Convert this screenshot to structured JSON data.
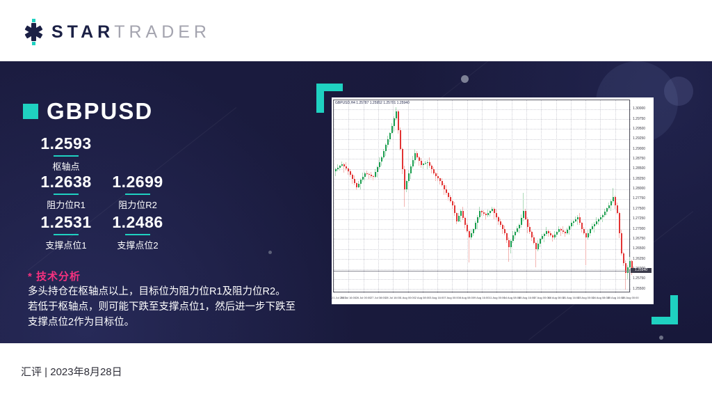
{
  "header": {
    "logo_star": "STAR",
    "logo_trader": "TRADER"
  },
  "panel": {
    "symbol": "GBPUSD",
    "pivot": {
      "value": "1.2593",
      "label": "枢轴点"
    },
    "levels": [
      {
        "value": "1.2638",
        "label": "阻力位R1"
      },
      {
        "value": "1.2699",
        "label": "阻力位R2"
      },
      {
        "value": "1.2531",
        "label": "支撑点位1"
      },
      {
        "value": "1.2486",
        "label": "支撑点位2"
      }
    ],
    "analysis_title": "* 技术分析",
    "analysis_lines": [
      "多头持仓在枢轴点以上，目标位为阻力位R1及阻力位R2。",
      "若低于枢轴点，则可能下跌至支撑点位1，然后进一步下跌至",
      "支撑点位2作为目标位。"
    ]
  },
  "footer": {
    "text": "汇评 | 2023年8月28日"
  },
  "colors": {
    "accent_teal": "#1fd1c1",
    "accent_pink": "#f5317f",
    "panel_navy": "#191a3c",
    "logo_navy": "#1b2045",
    "logo_gray": "#a4a4af"
  },
  "chart_data": {
    "type": "candlestick",
    "symbol": "GBPUSD",
    "timeframe": "H4",
    "title": "GBPUSD,H4 1.25787 1.25952 1.25701 1.25940",
    "legend_position": "top-left-inside",
    "grid": "dotted",
    "current_price": 1.2594,
    "current_price_label": "1.25940",
    "y_axis": {
      "min": 1.254,
      "max": 1.3022,
      "tick_labels": [
        "1.30000",
        "1.29750",
        "1.29500",
        "1.29250",
        "1.29000",
        "1.28750",
        "1.28500",
        "1.28250",
        "1.28000",
        "1.27750",
        "1.27500",
        "1.27250",
        "1.27000",
        "1.26750",
        "1.26500",
        "1.26250",
        "1.26000",
        "1.25750",
        "1.25500"
      ]
    },
    "x_labels": [
      "21 Jul 2023",
      "24 Jul 16:00",
      "26 Jul 00:00",
      "27 Jul 08:00",
      "28 Jul 16:00",
      "1 Aug 00:00",
      "2 Aug 08:00",
      "3 Aug 16:00",
      "7 Aug 00:00",
      "8 Aug 08:00",
      "9 Aug 16:00",
      "11 Aug 00:00",
      "14 Aug 08:00",
      "15 Aug 16:00",
      "17 Aug 00:00",
      "18 Aug 08:00",
      "21 Aug 16:00",
      "23 Aug 00:00",
      "24 Aug 08:00",
      "25 Aug 16:00",
      "28 Aug 00:00"
    ],
    "open0": 1.2845,
    "closes": [
      1.285,
      1.2854,
      1.2858,
      1.2862,
      1.2856,
      1.2851,
      1.2845,
      1.2835,
      1.2825,
      1.2815,
      1.2805,
      1.2814,
      1.2823,
      1.2831,
      1.284,
      1.2838,
      1.2835,
      1.2833,
      1.283,
      1.2843,
      1.2855,
      1.2868,
      1.288,
      1.2895,
      1.291,
      1.2925,
      1.294,
      1.2958,
      1.2977,
      1.2995,
      1.2948,
      1.29,
      1.285,
      1.28,
      1.282,
      1.284,
      1.2857,
      1.2873,
      1.289,
      1.288,
      1.287,
      1.286,
      1.2863,
      1.2865,
      1.2868,
      1.2859,
      1.2849,
      1.284,
      1.2833,
      1.2827,
      1.282,
      1.281,
      1.28,
      1.279,
      1.278,
      1.277,
      1.276,
      1.274,
      1.272,
      1.2733,
      1.2745,
      1.2728,
      1.271,
      1.2695,
      1.268,
      1.269,
      1.27,
      1.2715,
      1.273,
      1.2745,
      1.2742,
      1.2738,
      1.2735,
      1.274,
      1.2745,
      1.275,
      1.274,
      1.273,
      1.272,
      1.271,
      1.27,
      1.269,
      1.2673,
      1.2655,
      1.267,
      1.2685,
      1.2693,
      1.2702,
      1.271,
      1.2728,
      1.2745,
      1.2725,
      1.2705,
      1.2693,
      1.268,
      1.2665,
      1.265,
      1.2663,
      1.2675,
      1.2682,
      1.2688,
      1.2695,
      1.269,
      1.2685,
      1.268,
      1.2687,
      1.2693,
      1.27,
      1.2697,
      1.2693,
      1.269,
      1.2698,
      1.2707,
      1.2715,
      1.272,
      1.2725,
      1.273,
      1.2715,
      1.27,
      1.269,
      1.268,
      1.269,
      1.27,
      1.2707,
      1.2713,
      1.272,
      1.2725,
      1.273,
      1.2735,
      1.2743,
      1.2752,
      1.276,
      1.277,
      1.278,
      1.276,
      1.274,
      1.269,
      1.264,
      1.2615,
      1.259,
      1.2605,
      1.262,
      1.2594
    ],
    "wick_cycle": [
      0.0005,
      0.0012,
      0.0003,
      0.0009,
      0.0006,
      0.0015,
      0.0004,
      0.0008
    ],
    "high_spikes": {
      "29": 1.3005,
      "38": 1.29,
      "90": 1.279,
      "133": 1.2802
    },
    "low_spikes": {
      "33": 1.2755,
      "64": 1.2616,
      "83": 1.2618,
      "96": 1.2605,
      "120": 1.261,
      "139": 1.2548
    },
    "colors": {
      "up": "#1a9e4f",
      "down": "#e23434",
      "up_wick": "#abd9b8",
      "down_wick": "#f3b4b1"
    }
  }
}
